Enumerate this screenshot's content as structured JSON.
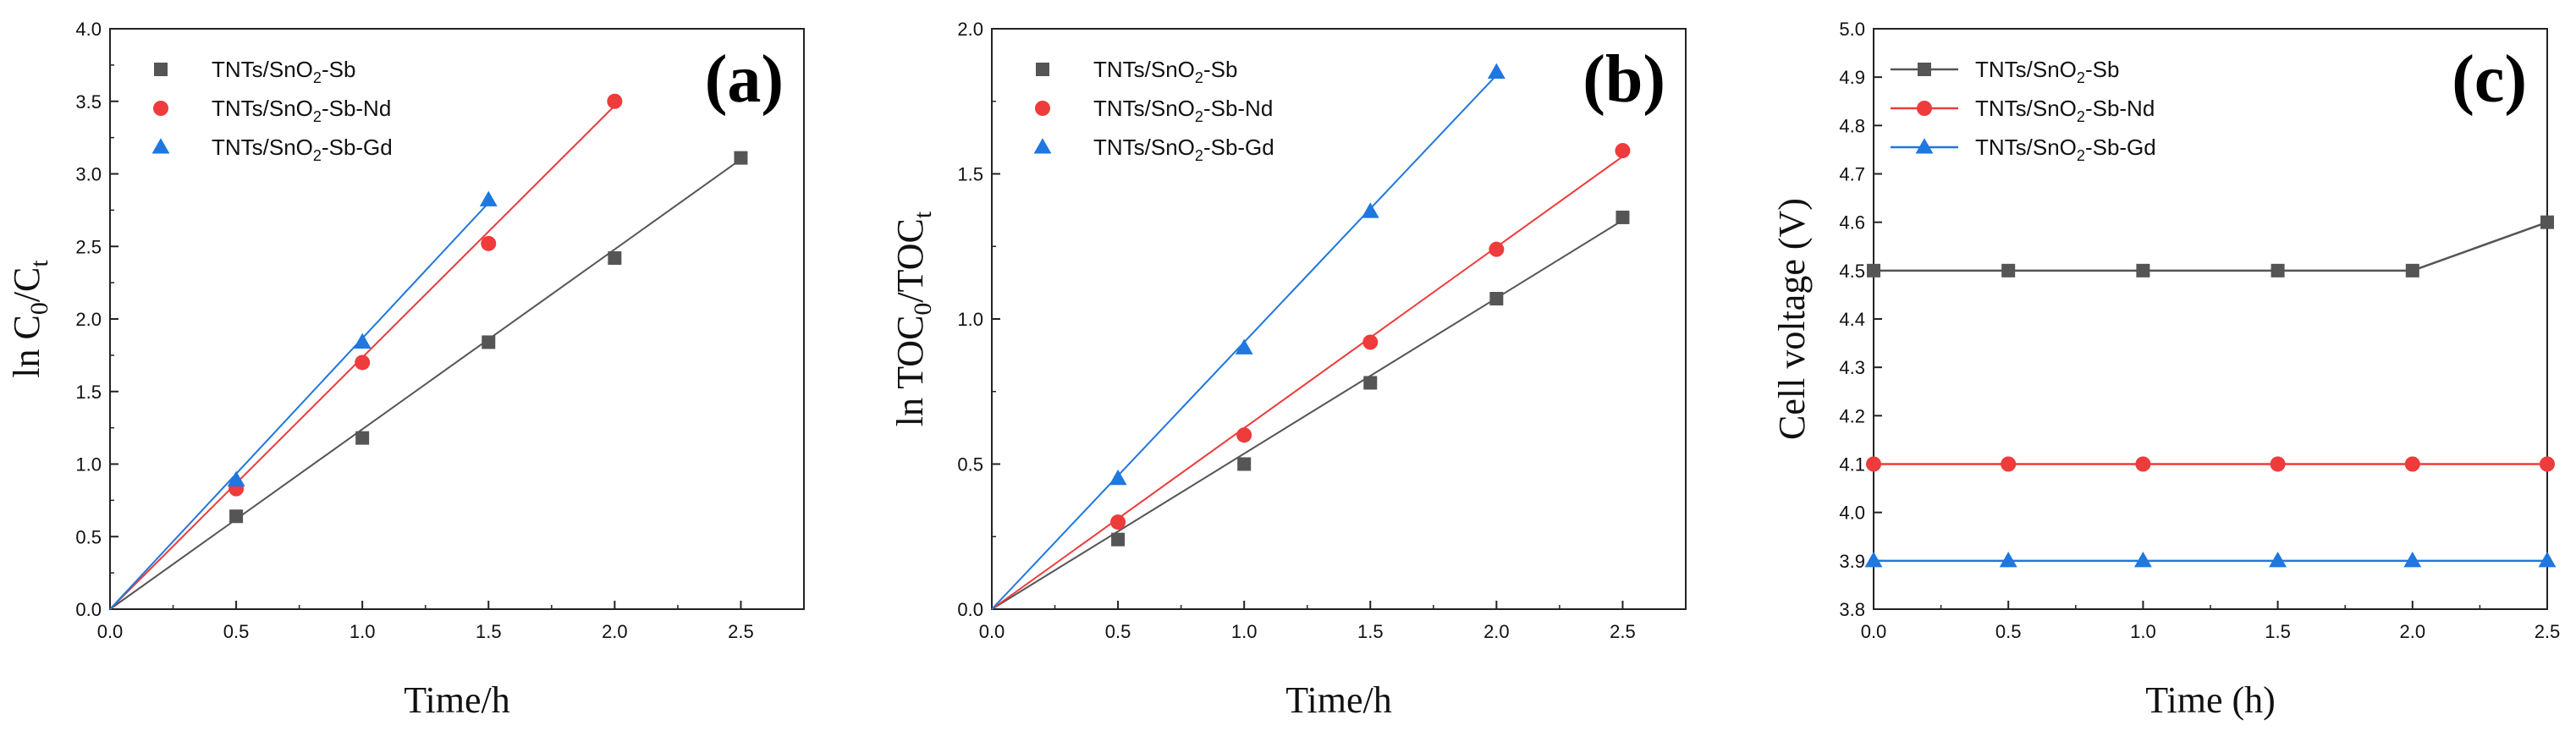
{
  "chart_data": [
    {
      "type": "line",
      "panel": "(a)",
      "xlabel": "Time/h",
      "ylabel_main": "ln C",
      "ylabel_sub1": "0",
      "ylabel_mid": "/C",
      "ylabel_sub2": "t",
      "xlim": [
        0,
        2.75
      ],
      "ylim": [
        0,
        4.0
      ],
      "xticks": [
        "0.0",
        "0.5",
        "1.0",
        "1.5",
        "2.0",
        "2.5"
      ],
      "xtick_values": [
        0,
        0.5,
        1.0,
        1.5,
        2.0,
        2.5
      ],
      "yticks": [
        "0.0",
        "0.5",
        "1.0",
        "1.5",
        "2.0",
        "2.5",
        "3.0",
        "3.5",
        "4.0"
      ],
      "ytick_values": [
        0,
        0.5,
        1.0,
        1.5,
        2.0,
        2.5,
        3.0,
        3.5,
        4.0
      ],
      "legend": "top-left",
      "style": "fit-line",
      "series": [
        {
          "name": "TNTs/SnO₂-Sb",
          "color": "#555555",
          "marker": "square",
          "x": [
            0,
            0.5,
            1.0,
            1.5,
            2.0,
            2.5
          ],
          "values": [
            0,
            0.64,
            1.18,
            1.84,
            2.42,
            3.11
          ],
          "fit_end": [
            2.5,
            3.1
          ]
        },
        {
          "name": "TNTs/SnO₂-Sb-Nd",
          "color": "#ee3b3b",
          "marker": "circle",
          "x": [
            0,
            0.5,
            1.0,
            1.5,
            2.0
          ],
          "values": [
            0,
            0.83,
            1.7,
            2.52,
            3.5
          ],
          "fit_end": [
            2.0,
            3.47
          ]
        },
        {
          "name": "TNTs/SnO₂-Sb-Gd",
          "color": "#1f77e0",
          "marker": "triangle",
          "x": [
            0,
            0.5,
            1.0,
            1.5
          ],
          "values": [
            0,
            0.89,
            1.84,
            2.82
          ],
          "fit_end": [
            1.5,
            2.8
          ]
        }
      ]
    },
    {
      "type": "line",
      "panel": "(b)",
      "xlabel": "Time/h",
      "ylabel_main": "ln TOC",
      "ylabel_sub1": "0",
      "ylabel_mid": "/TOC",
      "ylabel_sub2": "t",
      "xlim": [
        0,
        2.75
      ],
      "ylim": [
        0,
        2.0
      ],
      "xticks": [
        "0.0",
        "0.5",
        "1.0",
        "1.5",
        "2.0",
        "2.5"
      ],
      "xtick_values": [
        0,
        0.5,
        1.0,
        1.5,
        2.0,
        2.5
      ],
      "yticks": [
        "0.0",
        "0.5",
        "1.0",
        "1.5",
        "2.0"
      ],
      "ytick_values": [
        0,
        0.5,
        1.0,
        1.5,
        2.0
      ],
      "legend": "top-left",
      "style": "fit-line",
      "series": [
        {
          "name": "TNTs/SnO₂-Sb",
          "color": "#555555",
          "marker": "square",
          "x": [
            0,
            0.5,
            1.0,
            1.5,
            2.0,
            2.5
          ],
          "values": [
            0,
            0.24,
            0.5,
            0.78,
            1.07,
            1.35
          ],
          "fit_end": [
            2.5,
            1.34
          ]
        },
        {
          "name": "TNTs/SnO₂-Sb-Nd",
          "color": "#ee3b3b",
          "marker": "circle",
          "x": [
            0,
            0.5,
            1.0,
            1.5,
            2.0,
            2.5
          ],
          "values": [
            0,
            0.3,
            0.6,
            0.92,
            1.24,
            1.58
          ],
          "fit_end": [
            2.5,
            1.56
          ]
        },
        {
          "name": "TNTs/SnO₂-Sb-Gd",
          "color": "#1f77e0",
          "marker": "triangle",
          "x": [
            0,
            0.5,
            1.0,
            1.5,
            2.0
          ],
          "values": [
            0,
            0.45,
            0.9,
            1.37,
            1.85
          ],
          "fit_end": [
            2.0,
            1.84
          ]
        }
      ]
    },
    {
      "type": "line",
      "panel": "(c)",
      "xlabel": "Time (h)",
      "ylabel_main": "Cell voltage (V)",
      "ylabel_sub1": "",
      "ylabel_mid": "",
      "ylabel_sub2": "",
      "xlim": [
        0,
        2.5
      ],
      "ylim": [
        3.8,
        5.0
      ],
      "xticks": [
        "0.0",
        "0.5",
        "1.0",
        "1.5",
        "2.0",
        "2.5"
      ],
      "xtick_values": [
        0,
        0.5,
        1.0,
        1.5,
        2.0,
        2.5
      ],
      "yticks": [
        "3.8",
        "3.9",
        "4.0",
        "4.1",
        "4.2",
        "4.3",
        "4.4",
        "4.5",
        "4.6",
        "4.7",
        "4.8",
        "4.9",
        "5.0"
      ],
      "ytick_values": [
        3.8,
        3.9,
        4.0,
        4.1,
        4.2,
        4.3,
        4.4,
        4.5,
        4.6,
        4.7,
        4.8,
        4.9,
        5.0
      ],
      "legend": "top-left",
      "style": "connected",
      "series": [
        {
          "name": "TNTs/SnO₂-Sb",
          "color": "#555555",
          "marker": "square",
          "x": [
            0,
            0.5,
            1.0,
            1.5,
            2.0,
            2.5
          ],
          "values": [
            4.5,
            4.5,
            4.5,
            4.5,
            4.5,
            4.6
          ]
        },
        {
          "name": "TNTs/SnO₂-Sb-Nd",
          "color": "#ee3b3b",
          "marker": "circle",
          "x": [
            0,
            0.5,
            1.0,
            1.5,
            2.0,
            2.5
          ],
          "values": [
            4.1,
            4.1,
            4.1,
            4.1,
            4.1,
            4.1
          ]
        },
        {
          "name": "TNTs/SnO₂-Sb-Gd",
          "color": "#1f77e0",
          "marker": "triangle",
          "x": [
            0,
            0.5,
            1.0,
            1.5,
            2.0,
            2.5
          ],
          "values": [
            3.9,
            3.9,
            3.9,
            3.9,
            3.9,
            3.9
          ]
        }
      ]
    }
  ]
}
